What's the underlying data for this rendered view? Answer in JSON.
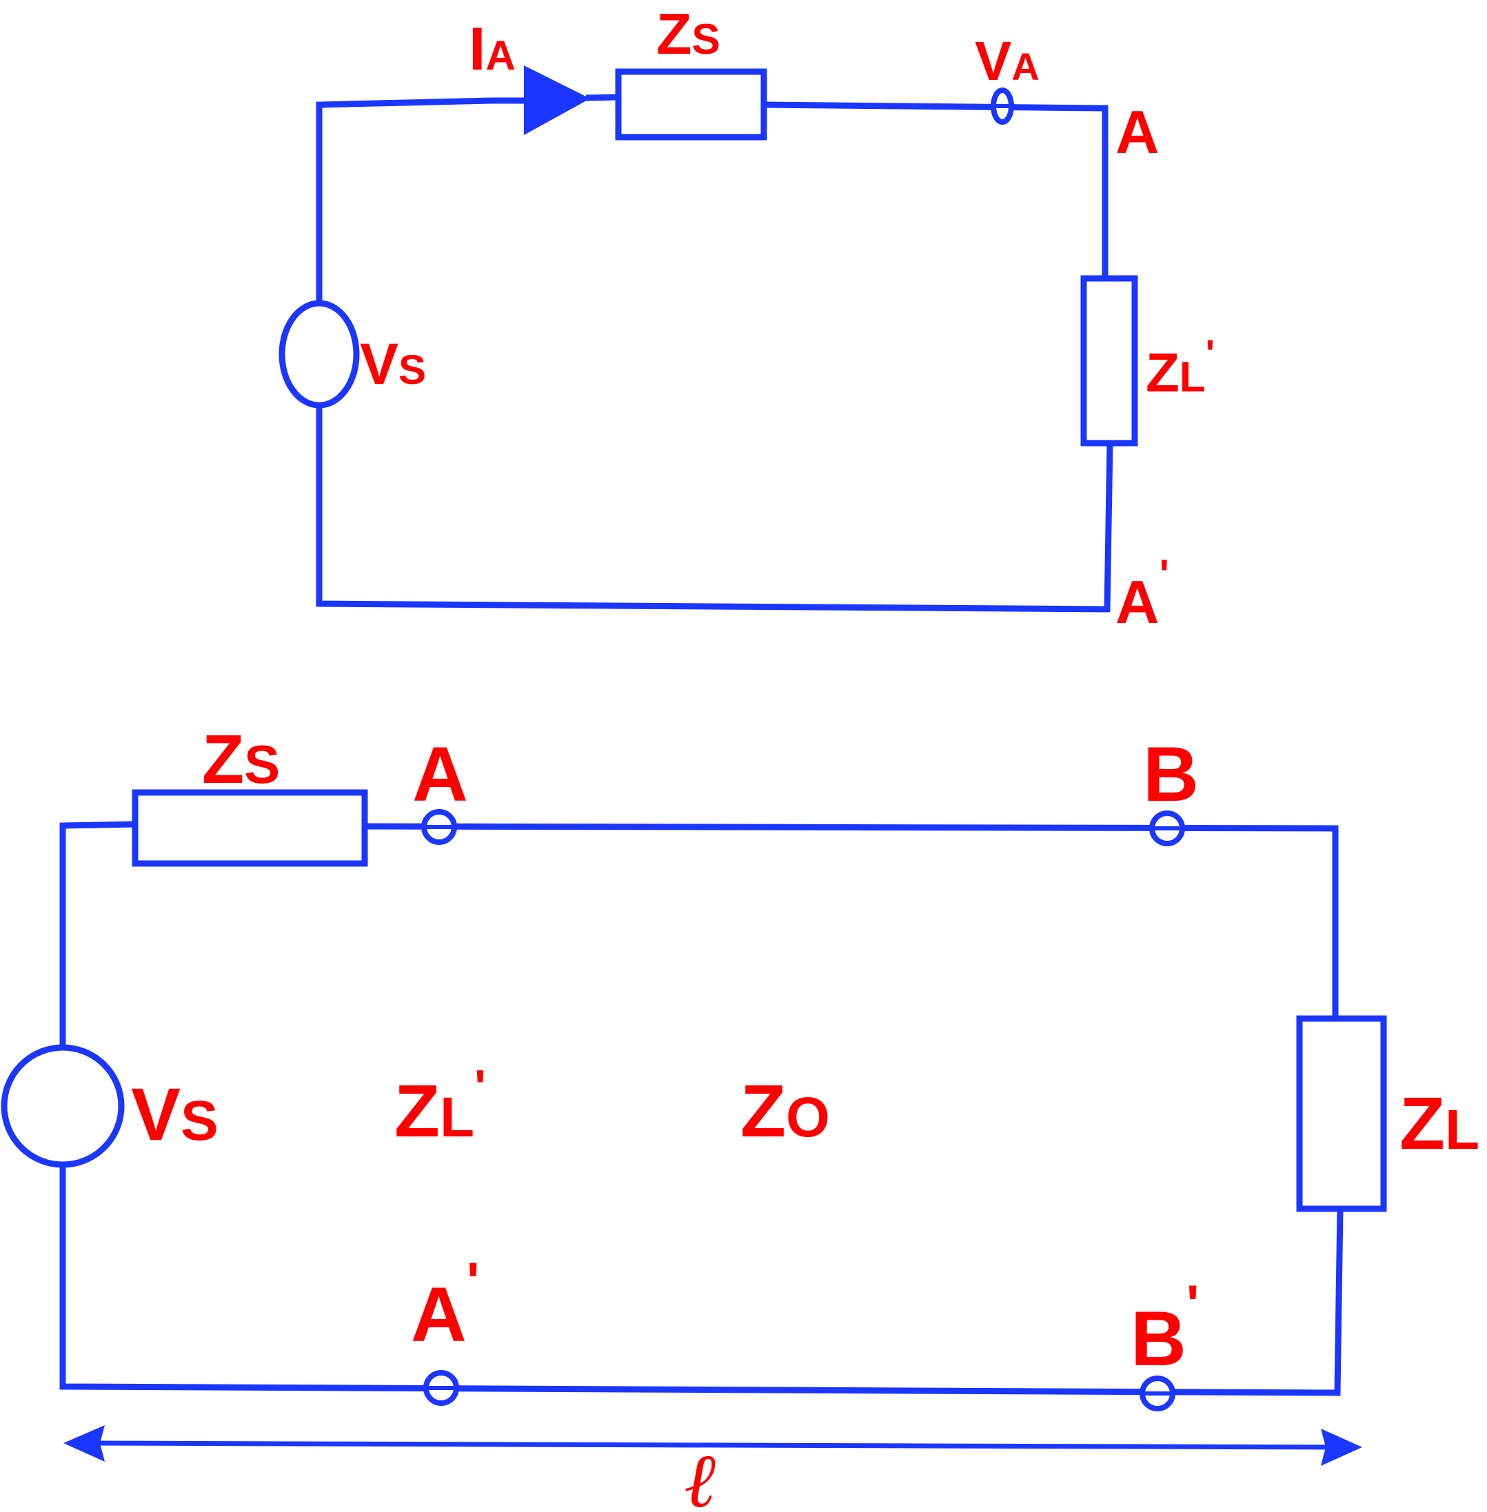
{
  "colors": {
    "wire": "#1a36ff",
    "label": "#ff0000",
    "background": "#ffffff"
  },
  "top_circuit": {
    "current_label": {
      "main": "I",
      "sub": "A"
    },
    "source_impedance": {
      "main": "Z",
      "sub": "S"
    },
    "node_voltage": {
      "main": "V",
      "sub": "A"
    },
    "node_a": "A",
    "source": {
      "main": "V",
      "sub": "S"
    },
    "load": {
      "main": "Z",
      "sub": "L",
      "prime": "'"
    },
    "node_a_prime": {
      "main": "A",
      "prime": "'"
    }
  },
  "bottom_circuit": {
    "source_impedance": {
      "main": "Z",
      "sub": "S"
    },
    "node_a": "A",
    "node_b": "B",
    "source": {
      "main": "V",
      "sub": "S"
    },
    "input_impedance": {
      "main": "Z",
      "sub": "L",
      "prime": "'"
    },
    "line_impedance": {
      "main": "Z",
      "sub": "O"
    },
    "load": {
      "main": "Z",
      "sub": "L"
    },
    "node_a_prime": {
      "main": "A",
      "prime": "'"
    },
    "node_b_prime": {
      "main": "B",
      "prime": "'"
    },
    "length": "ℓ"
  }
}
